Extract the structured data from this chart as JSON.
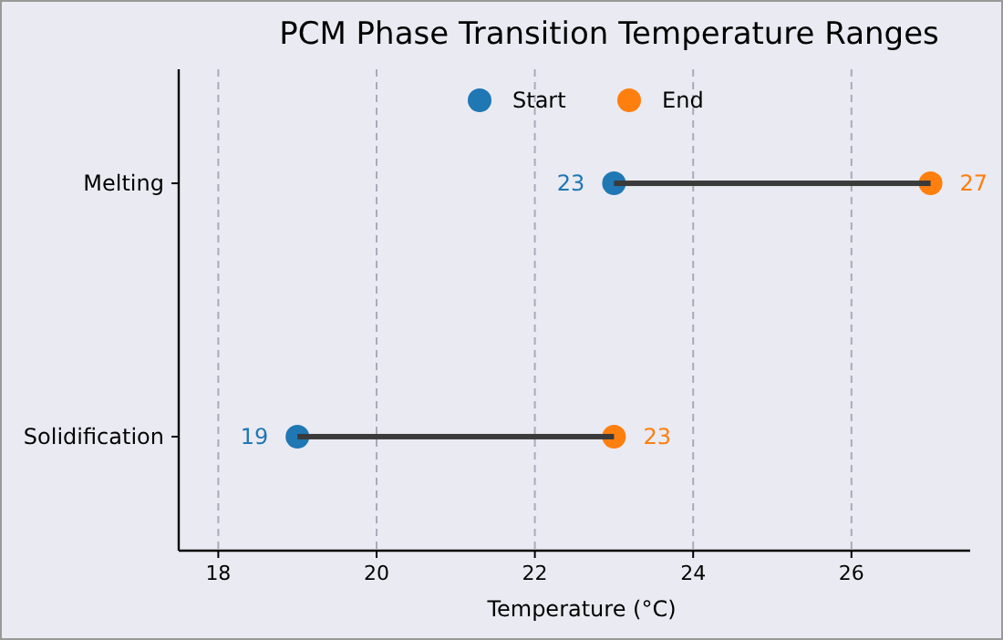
{
  "chart_data": {
    "type": "scatter",
    "title": "PCM Phase Transition Temperature Ranges",
    "xlabel": "Temperature (°C)",
    "orientation": "horizontal",
    "categories": [
      "Melting",
      "Solidification"
    ],
    "series": [
      {
        "type": "bar",
        "color": "#3a3a3a",
        "base": [
          23,
          19
        ],
        "values": [
          4,
          4
        ]
      },
      {
        "name": "Start",
        "color": "#1f77b4",
        "values": [
          23,
          19
        ],
        "value_labels": [
          "23",
          "19"
        ]
      },
      {
        "name": "End",
        "color": "#ff7f0e",
        "values": [
          27,
          23
        ],
        "value_labels": [
          "27",
          "23"
        ]
      }
    ],
    "xlim": [
      17.5,
      27.5
    ],
    "xticks": [
      18,
      20,
      22,
      24,
      26
    ],
    "grid": "x",
    "legend": "top",
    "marker": "circle"
  }
}
